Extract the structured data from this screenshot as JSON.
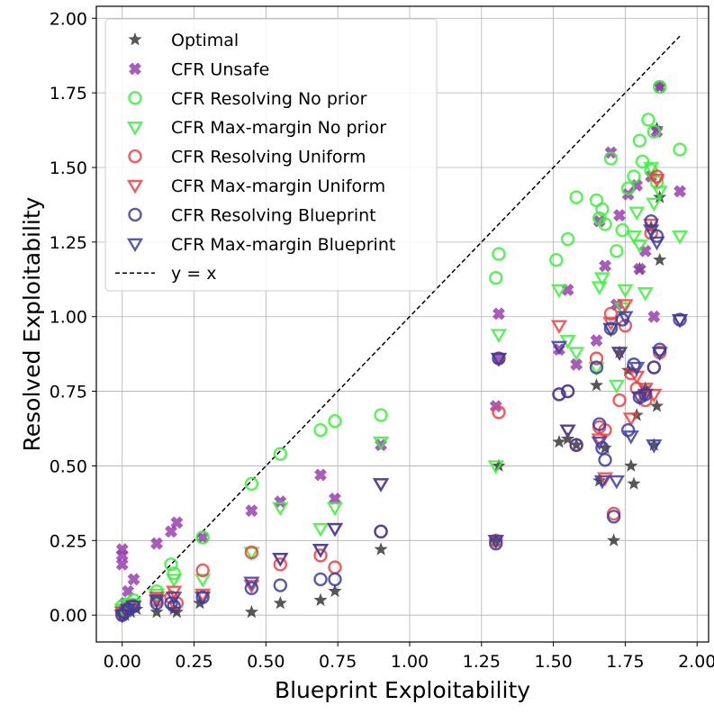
{
  "chart_data": {
    "type": "scatter",
    "title": "",
    "xlabel": "Blueprint Exploitability",
    "ylabel": "Resolved Exploitability",
    "xlim": [
      -0.09,
      2.04
    ],
    "ylim": [
      -0.09,
      2.04
    ],
    "xticks": [
      "0.00",
      "0.25",
      "0.50",
      "0.75",
      "1.00",
      "1.25",
      "1.50",
      "1.75",
      "2.00"
    ],
    "yticks": [
      "0.00",
      "0.25",
      "0.50",
      "0.75",
      "1.00",
      "1.25",
      "1.50",
      "1.75",
      "2.00"
    ],
    "grid": true,
    "legend_position": "top-left",
    "reference_line": {
      "label": "y = x",
      "from": [
        0.0,
        0.0
      ],
      "to": [
        1.94,
        1.94
      ],
      "color": "#000000"
    },
    "series": [
      {
        "name": "Optimal",
        "marker": "star",
        "color": "#3a3a3a",
        "points": [
          [
            0.0,
            0.0
          ],
          [
            0.01,
            0.0
          ],
          [
            0.03,
            0.01
          ],
          [
            0.05,
            0.02
          ],
          [
            0.12,
            0.01
          ],
          [
            0.18,
            0.02
          ],
          [
            0.19,
            0.01
          ],
          [
            0.27,
            0.04
          ],
          [
            0.45,
            0.01
          ],
          [
            0.55,
            0.04
          ],
          [
            0.69,
            0.05
          ],
          [
            0.74,
            0.08
          ],
          [
            0.9,
            0.22
          ],
          [
            1.3,
            0.25
          ],
          [
            1.31,
            0.5
          ],
          [
            1.52,
            0.58
          ],
          [
            1.55,
            0.59
          ],
          [
            1.58,
            0.57
          ],
          [
            1.65,
            0.77
          ],
          [
            1.66,
            0.45
          ],
          [
            1.68,
            0.56
          ],
          [
            1.71,
            0.25
          ],
          [
            1.73,
            0.88
          ],
          [
            1.76,
            0.82
          ],
          [
            1.77,
            0.5
          ],
          [
            1.78,
            0.44
          ],
          [
            1.79,
            0.67
          ],
          [
            1.8,
            1.16
          ],
          [
            1.82,
            0.76
          ],
          [
            1.84,
            1.3
          ],
          [
            1.85,
            0.57
          ],
          [
            1.86,
            0.7
          ],
          [
            1.87,
            1.19
          ],
          [
            1.87,
            1.4
          ],
          [
            1.86,
            1.63
          ],
          [
            1.87,
            1.77
          ]
        ]
      },
      {
        "name": "CFR Unsafe",
        "marker": "x-heavy",
        "color": "#9b3fb0",
        "points": [
          [
            0.0,
            0.22
          ],
          [
            0.0,
            0.2
          ],
          [
            0.0,
            0.17
          ],
          [
            0.01,
            0.04
          ],
          [
            0.02,
            0.08
          ],
          [
            0.04,
            0.12
          ],
          [
            0.12,
            0.24
          ],
          [
            0.17,
            0.28
          ],
          [
            0.19,
            0.31
          ],
          [
            0.28,
            0.26
          ],
          [
            0.45,
            0.35
          ],
          [
            0.55,
            0.38
          ],
          [
            0.69,
            0.47
          ],
          [
            0.74,
            0.39
          ],
          [
            0.9,
            0.57
          ],
          [
            1.3,
            0.7
          ],
          [
            1.31,
            1.01
          ],
          [
            1.31,
            0.86
          ],
          [
            1.52,
            0.89
          ],
          [
            1.55,
            1.09
          ],
          [
            1.58,
            0.84
          ],
          [
            1.65,
            0.92
          ],
          [
            1.66,
            1.32
          ],
          [
            1.68,
            1.17
          ],
          [
            1.7,
            1.55
          ],
          [
            1.72,
            1.04
          ],
          [
            1.73,
            1.34
          ],
          [
            1.76,
            1.41
          ],
          [
            1.79,
            1.44
          ],
          [
            1.8,
            1.16
          ],
          [
            1.82,
            1.22
          ],
          [
            1.84,
            1.47
          ],
          [
            1.85,
            1.0
          ],
          [
            1.86,
            1.62
          ],
          [
            1.87,
            1.77
          ],
          [
            1.94,
            1.42
          ]
        ]
      },
      {
        "name": "CFR Resolving No prior",
        "marker": "circle",
        "color": "#3cf03c",
        "points": [
          [
            0.0,
            0.03
          ],
          [
            0.02,
            0.03
          ],
          [
            0.04,
            0.05
          ],
          [
            0.12,
            0.08
          ],
          [
            0.17,
            0.17
          ],
          [
            0.18,
            0.14
          ],
          [
            0.28,
            0.26
          ],
          [
            0.45,
            0.44
          ],
          [
            0.55,
            0.54
          ],
          [
            0.69,
            0.62
          ],
          [
            0.74,
            0.65
          ],
          [
            0.9,
            0.67
          ],
          [
            1.3,
            1.13
          ],
          [
            1.31,
            1.21
          ],
          [
            1.51,
            1.19
          ],
          [
            1.55,
            1.26
          ],
          [
            1.58,
            1.4
          ],
          [
            1.65,
            1.39
          ],
          [
            1.66,
            1.33
          ],
          [
            1.67,
            1.36
          ],
          [
            1.68,
            1.31
          ],
          [
            1.7,
            1.53
          ],
          [
            1.72,
            1.22
          ],
          [
            1.74,
            1.29
          ],
          [
            1.76,
            1.43
          ],
          [
            1.78,
            1.47
          ],
          [
            1.8,
            1.59
          ],
          [
            1.81,
            1.52
          ],
          [
            1.83,
            1.66
          ],
          [
            1.84,
            1.49
          ],
          [
            1.85,
            1.62
          ],
          [
            1.86,
            1.45
          ],
          [
            1.87,
            1.77
          ],
          [
            1.94,
            1.56
          ]
        ]
      },
      {
        "name": "CFR Max-margin No prior",
        "marker": "triangle-down",
        "color": "#3cf03c",
        "points": [
          [
            0.0,
            0.02
          ],
          [
            0.03,
            0.04
          ],
          [
            0.12,
            0.07
          ],
          [
            0.18,
            0.12
          ],
          [
            0.28,
            0.12
          ],
          [
            0.45,
            0.21
          ],
          [
            0.55,
            0.36
          ],
          [
            0.69,
            0.29
          ],
          [
            0.74,
            0.36
          ],
          [
            0.9,
            0.58
          ],
          [
            1.3,
            0.5
          ],
          [
            1.31,
            0.94
          ],
          [
            1.52,
            1.09
          ],
          [
            1.55,
            0.92
          ],
          [
            1.58,
            0.88
          ],
          [
            1.65,
            0.83
          ],
          [
            1.66,
            1.1
          ],
          [
            1.67,
            1.13
          ],
          [
            1.7,
            0.96
          ],
          [
            1.72,
            0.77
          ],
          [
            1.74,
            1.03
          ],
          [
            1.75,
            1.09
          ],
          [
            1.78,
            1.27
          ],
          [
            1.79,
            1.35
          ],
          [
            1.8,
            1.24
          ],
          [
            1.82,
            1.08
          ],
          [
            1.84,
            1.5
          ],
          [
            1.85,
            1.38
          ],
          [
            1.87,
            1.42
          ],
          [
            1.94,
            1.27
          ]
        ]
      },
      {
        "name": "CFR Resolving Uniform",
        "marker": "circle",
        "color": "#f04040",
        "points": [
          [
            0.0,
            0.01
          ],
          [
            0.03,
            0.03
          ],
          [
            0.12,
            0.05
          ],
          [
            0.17,
            0.06
          ],
          [
            0.19,
            0.04
          ],
          [
            0.28,
            0.15
          ],
          [
            0.45,
            0.21
          ],
          [
            0.55,
            0.17
          ],
          [
            0.69,
            0.2
          ],
          [
            0.74,
            0.16
          ],
          [
            0.9,
            0.28
          ],
          [
            1.3,
            0.25
          ],
          [
            1.31,
            0.68
          ],
          [
            1.52,
            0.74
          ],
          [
            1.55,
            0.75
          ],
          [
            1.58,
            0.57
          ],
          [
            1.65,
            0.86
          ],
          [
            1.66,
            0.63
          ],
          [
            1.68,
            0.62
          ],
          [
            1.7,
            1.01
          ],
          [
            1.71,
            0.34
          ],
          [
            1.73,
            0.72
          ],
          [
            1.75,
            0.97
          ],
          [
            1.77,
            0.81
          ],
          [
            1.79,
            0.76
          ],
          [
            1.82,
            0.72
          ],
          [
            1.84,
            1.28
          ],
          [
            1.85,
            0.83
          ],
          [
            1.86,
            1.47
          ],
          [
            1.87,
            0.88
          ]
        ]
      },
      {
        "name": "CFR Max-margin Uniform",
        "marker": "triangle-down",
        "color": "#f04040",
        "points": [
          [
            0.0,
            0.01
          ],
          [
            0.03,
            0.02
          ],
          [
            0.12,
            0.06
          ],
          [
            0.18,
            0.08
          ],
          [
            0.28,
            0.07
          ],
          [
            0.45,
            0.1
          ],
          [
            0.55,
            0.19
          ],
          [
            0.69,
            0.22
          ],
          [
            0.74,
            0.29
          ],
          [
            0.9,
            0.44
          ],
          [
            1.3,
            0.25
          ],
          [
            1.31,
            0.86
          ],
          [
            1.52,
            0.97
          ],
          [
            1.55,
            0.62
          ],
          [
            1.66,
            0.59
          ],
          [
            1.68,
            0.46
          ],
          [
            1.7,
            0.98
          ],
          [
            1.73,
            0.88
          ],
          [
            1.75,
            1.04
          ],
          [
            1.77,
            0.66
          ],
          [
            1.79,
            0.8
          ],
          [
            1.82,
            0.76
          ],
          [
            1.84,
            1.31
          ],
          [
            1.85,
            0.74
          ],
          [
            1.86,
            1.46
          ],
          [
            1.94,
            0.99
          ]
        ]
      },
      {
        "name": "CFR Resolving Blueprint",
        "marker": "circle",
        "color": "#3c3ca0",
        "points": [
          [
            0.0,
            0.0
          ],
          [
            0.01,
            0.01
          ],
          [
            0.02,
            0.02
          ],
          [
            0.04,
            0.03
          ],
          [
            0.12,
            0.04
          ],
          [
            0.17,
            0.04
          ],
          [
            0.18,
            0.03
          ],
          [
            0.28,
            0.06
          ],
          [
            0.45,
            0.09
          ],
          [
            0.55,
            0.1
          ],
          [
            0.69,
            0.12
          ],
          [
            0.74,
            0.12
          ],
          [
            0.9,
            0.28
          ],
          [
            1.3,
            0.24
          ],
          [
            1.31,
            0.86
          ],
          [
            1.52,
            0.74
          ],
          [
            1.55,
            0.75
          ],
          [
            1.58,
            0.57
          ],
          [
            1.65,
            0.83
          ],
          [
            1.66,
            0.64
          ],
          [
            1.67,
            0.56
          ],
          [
            1.68,
            0.52
          ],
          [
            1.7,
            0.96
          ],
          [
            1.71,
            0.33
          ],
          [
            1.74,
            0.99
          ],
          [
            1.76,
            0.62
          ],
          [
            1.78,
            0.84
          ],
          [
            1.8,
            0.73
          ],
          [
            1.82,
            0.74
          ],
          [
            1.84,
            1.32
          ],
          [
            1.85,
            0.83
          ],
          [
            1.86,
            1.27
          ],
          [
            1.87,
            0.89
          ],
          [
            1.94,
            0.99
          ]
        ]
      },
      {
        "name": "CFR Max-margin Blueprint",
        "marker": "triangle-down",
        "color": "#3c3ca0",
        "points": [
          [
            0.0,
            0.0
          ],
          [
            0.02,
            0.02
          ],
          [
            0.04,
            0.03
          ],
          [
            0.12,
            0.05
          ],
          [
            0.18,
            0.06
          ],
          [
            0.28,
            0.06
          ],
          [
            0.45,
            0.11
          ],
          [
            0.55,
            0.19
          ],
          [
            0.69,
            0.22
          ],
          [
            0.74,
            0.29
          ],
          [
            0.9,
            0.44
          ],
          [
            1.3,
            0.25
          ],
          [
            1.31,
            0.86
          ],
          [
            1.52,
            0.9
          ],
          [
            1.55,
            0.62
          ],
          [
            1.66,
            0.58
          ],
          [
            1.67,
            0.45
          ],
          [
            1.7,
            0.96
          ],
          [
            1.72,
            0.45
          ],
          [
            1.73,
            0.88
          ],
          [
            1.75,
            1.0
          ],
          [
            1.77,
            0.6
          ],
          [
            1.79,
            0.83
          ],
          [
            1.8,
            0.73
          ],
          [
            1.82,
            0.74
          ],
          [
            1.84,
            1.29
          ],
          [
            1.85,
            0.57
          ],
          [
            1.86,
            1.25
          ],
          [
            1.87,
            0.88
          ],
          [
            1.94,
            0.99
          ]
        ]
      }
    ]
  }
}
